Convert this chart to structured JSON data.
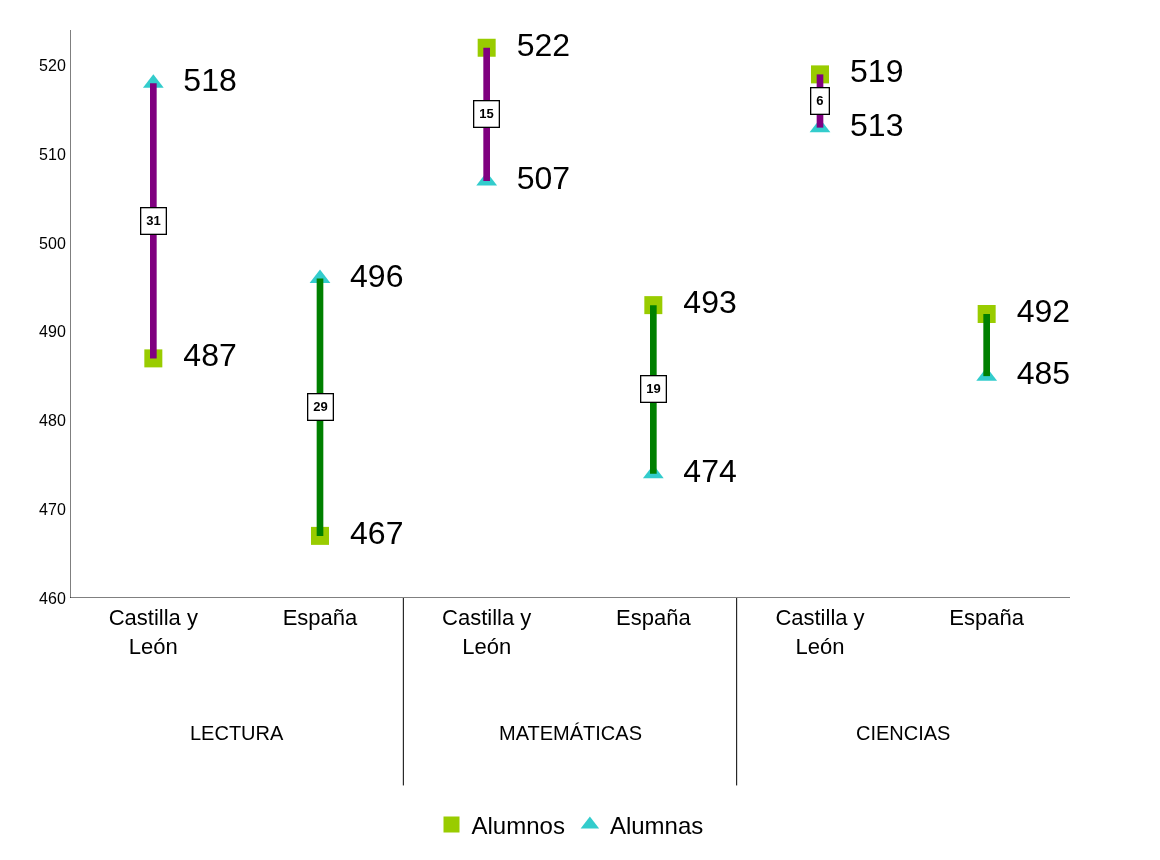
{
  "chart_data": {
    "type": "scatter",
    "categories": [
      "Castilla y León",
      "España",
      "Castilla y León",
      "España",
      "Castilla y León",
      "España"
    ],
    "annotations": [
      "LECTURA",
      "MATEMÁTICAS",
      "CIENCIAS"
    ],
    "series": [
      {
        "type": "bar",
        "base": [
          487,
          467,
          507,
          474,
          513,
          485
        ],
        "values": [
          31,
          29,
          15,
          19,
          6,
          7
        ],
        "colors": [
          "#800080",
          "#008000",
          "#800080",
          "#008000",
          "#800080",
          "#008000"
        ],
        "value_labels": [
          "31",
          "29",
          "15",
          "19",
          "6",
          null
        ]
      },
      {
        "name": "Alumnos",
        "color": "#99cc00",
        "marker": "square",
        "values": [
          487,
          467,
          522,
          493,
          519,
          492
        ],
        "value_labels": [
          "487",
          "467",
          "522",
          "493",
          "519",
          "492"
        ]
      },
      {
        "name": "Alumnas",
        "color": "#33cccc",
        "marker": "triangle",
        "values": [
          518,
          496,
          507,
          474,
          513,
          485
        ],
        "value_labels": [
          "518",
          "496",
          "507",
          "474",
          "513",
          "485"
        ]
      }
    ],
    "ylim": [
      460,
      524
    ],
    "yticks": [
      460,
      470,
      480,
      490,
      500,
      510,
      520
    ],
    "legend": "bottom"
  }
}
